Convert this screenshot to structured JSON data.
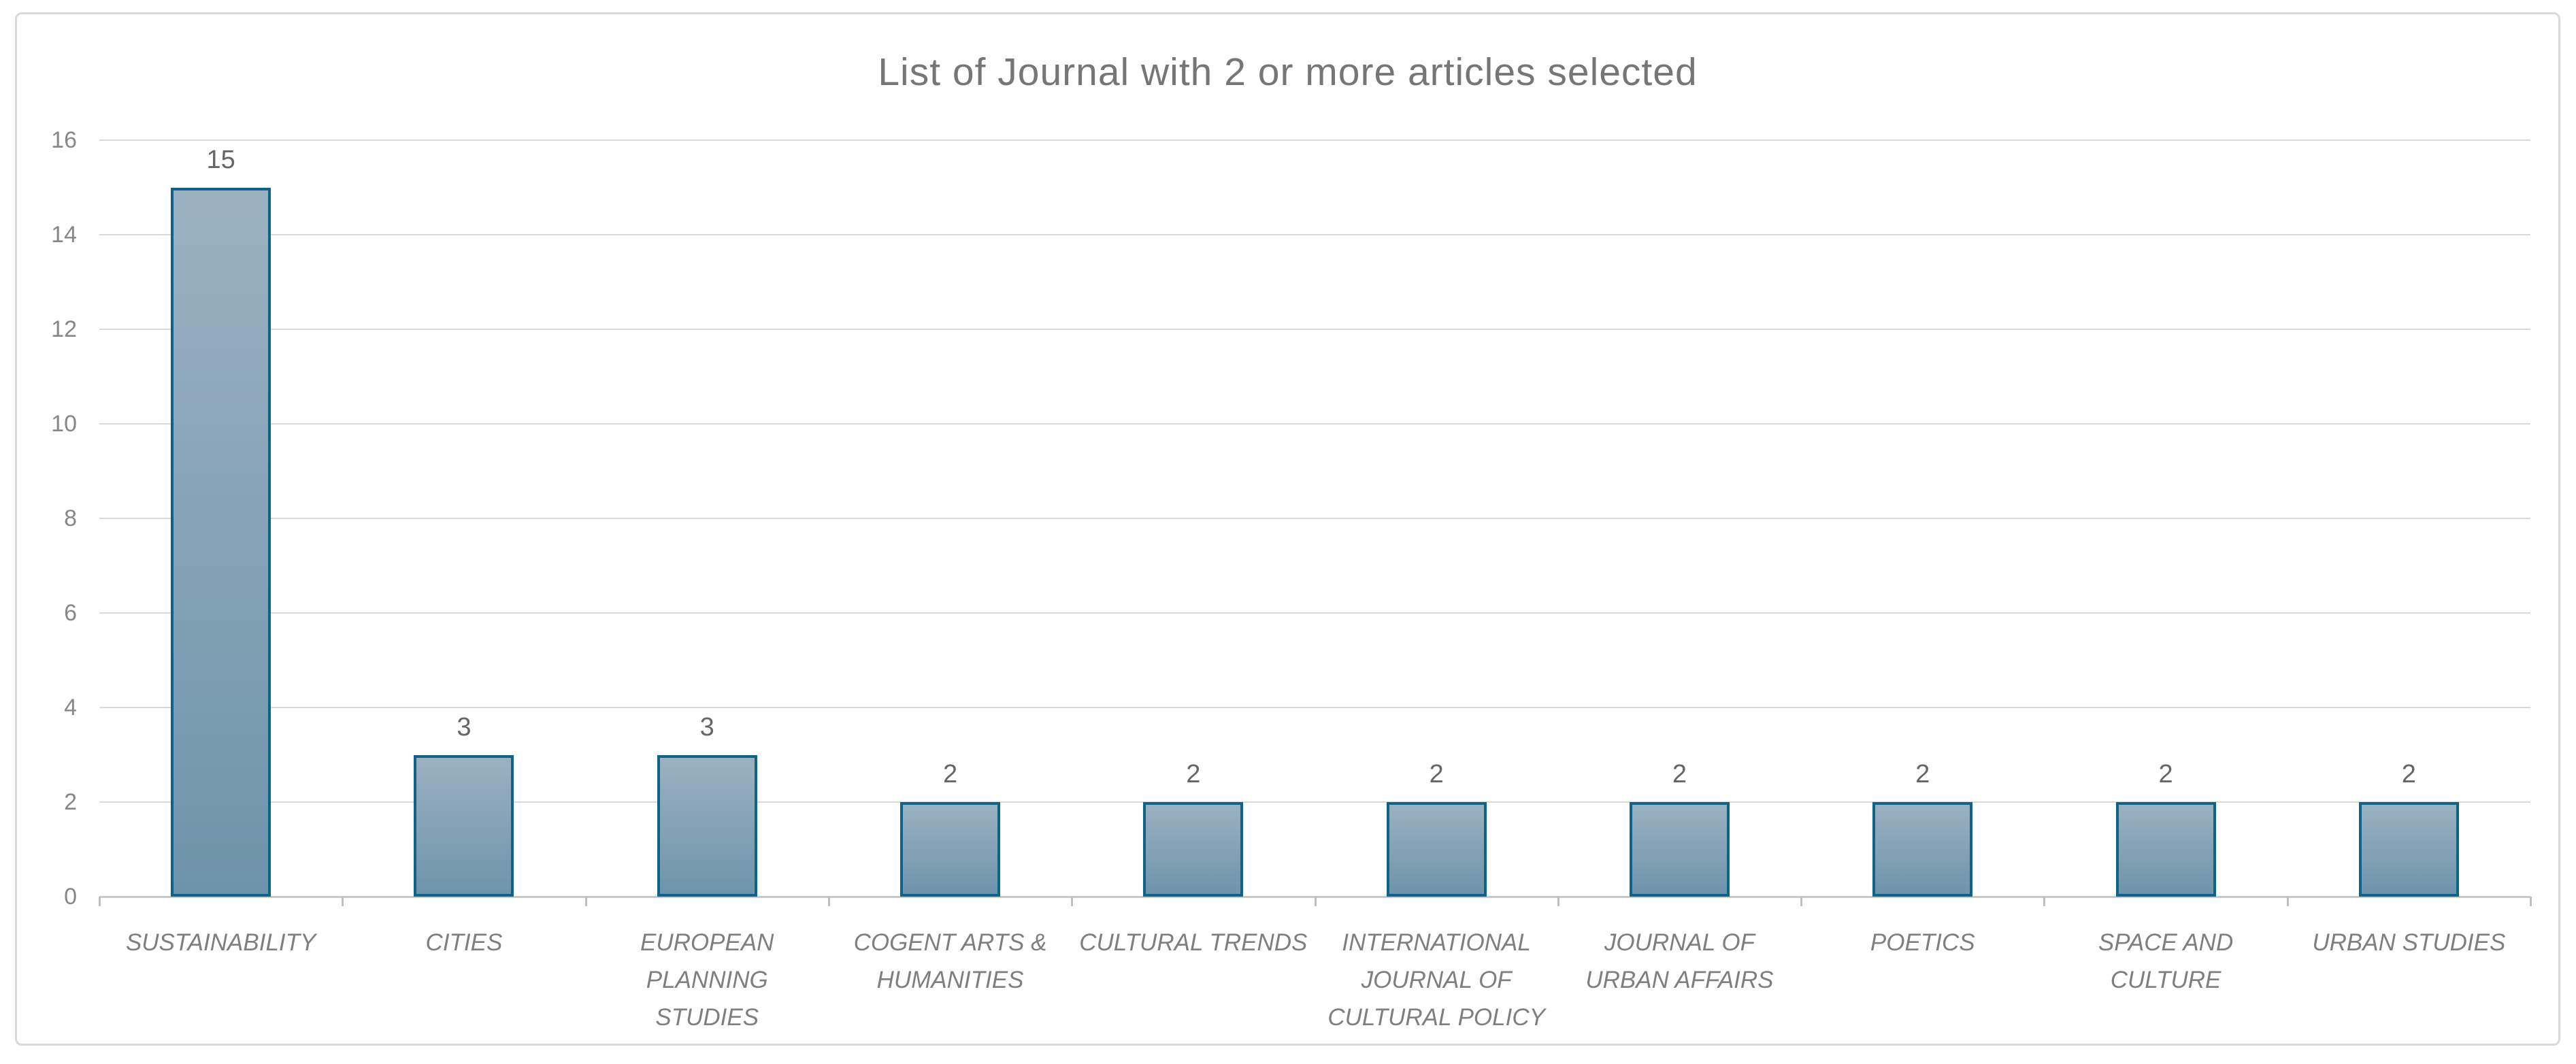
{
  "chart_data": {
    "type": "bar",
    "title": "List of Journal with 2 or more articles selected",
    "categories": [
      "SUSTAINABILITY",
      "CITIES",
      "EUROPEAN PLANNING STUDIES",
      "COGENT ARTS & HUMANITIES",
      "CULTURAL TRENDS",
      "INTERNATIONAL JOURNAL OF CULTURAL POLICY",
      "JOURNAL OF URBAN AFFAIRS",
      "POETICS",
      "SPACE AND CULTURE",
      "URBAN STUDIES"
    ],
    "category_label_lines": [
      [
        "SUSTAINABILITY"
      ],
      [
        "CITIES"
      ],
      [
        "EUROPEAN",
        "PLANNING",
        "STUDIES"
      ],
      [
        "COGENT ARTS &",
        "HUMANITIES"
      ],
      [
        "CULTURAL TRENDS"
      ],
      [
        "INTERNATIONAL",
        "JOURNAL OF",
        "CULTURAL POLICY"
      ],
      [
        "JOURNAL OF",
        "URBAN AFFAIRS"
      ],
      [
        "POETICS"
      ],
      [
        "SPACE AND",
        "CULTURE"
      ],
      [
        "URBAN STUDIES"
      ]
    ],
    "values": [
      15,
      3,
      3,
      2,
      2,
      2,
      2,
      2,
      2,
      2
    ],
    "data_labels": [
      "15",
      "3",
      "3",
      "2",
      "2",
      "2",
      "2",
      "2",
      "2",
      "2"
    ],
    "xlabel": "",
    "ylabel": "",
    "ylim": [
      0,
      16
    ],
    "y_ticks": [
      0,
      2,
      4,
      6,
      8,
      10,
      12,
      14,
      16
    ],
    "grid": true,
    "legend": "none",
    "colors": {
      "bar_fill_top": "#9bb1c0",
      "bar_fill_bottom": "#6e94ab",
      "bar_border": "#0e6389",
      "gridline": "#d9d9d9",
      "axis_line": "#c9c9c9",
      "title_text": "#767676",
      "tick_text": "#878787",
      "category_text": "#7f7f7f",
      "data_label_text": "#666666",
      "frame_border": "#d9d9d9",
      "background": "#ffffff"
    }
  }
}
